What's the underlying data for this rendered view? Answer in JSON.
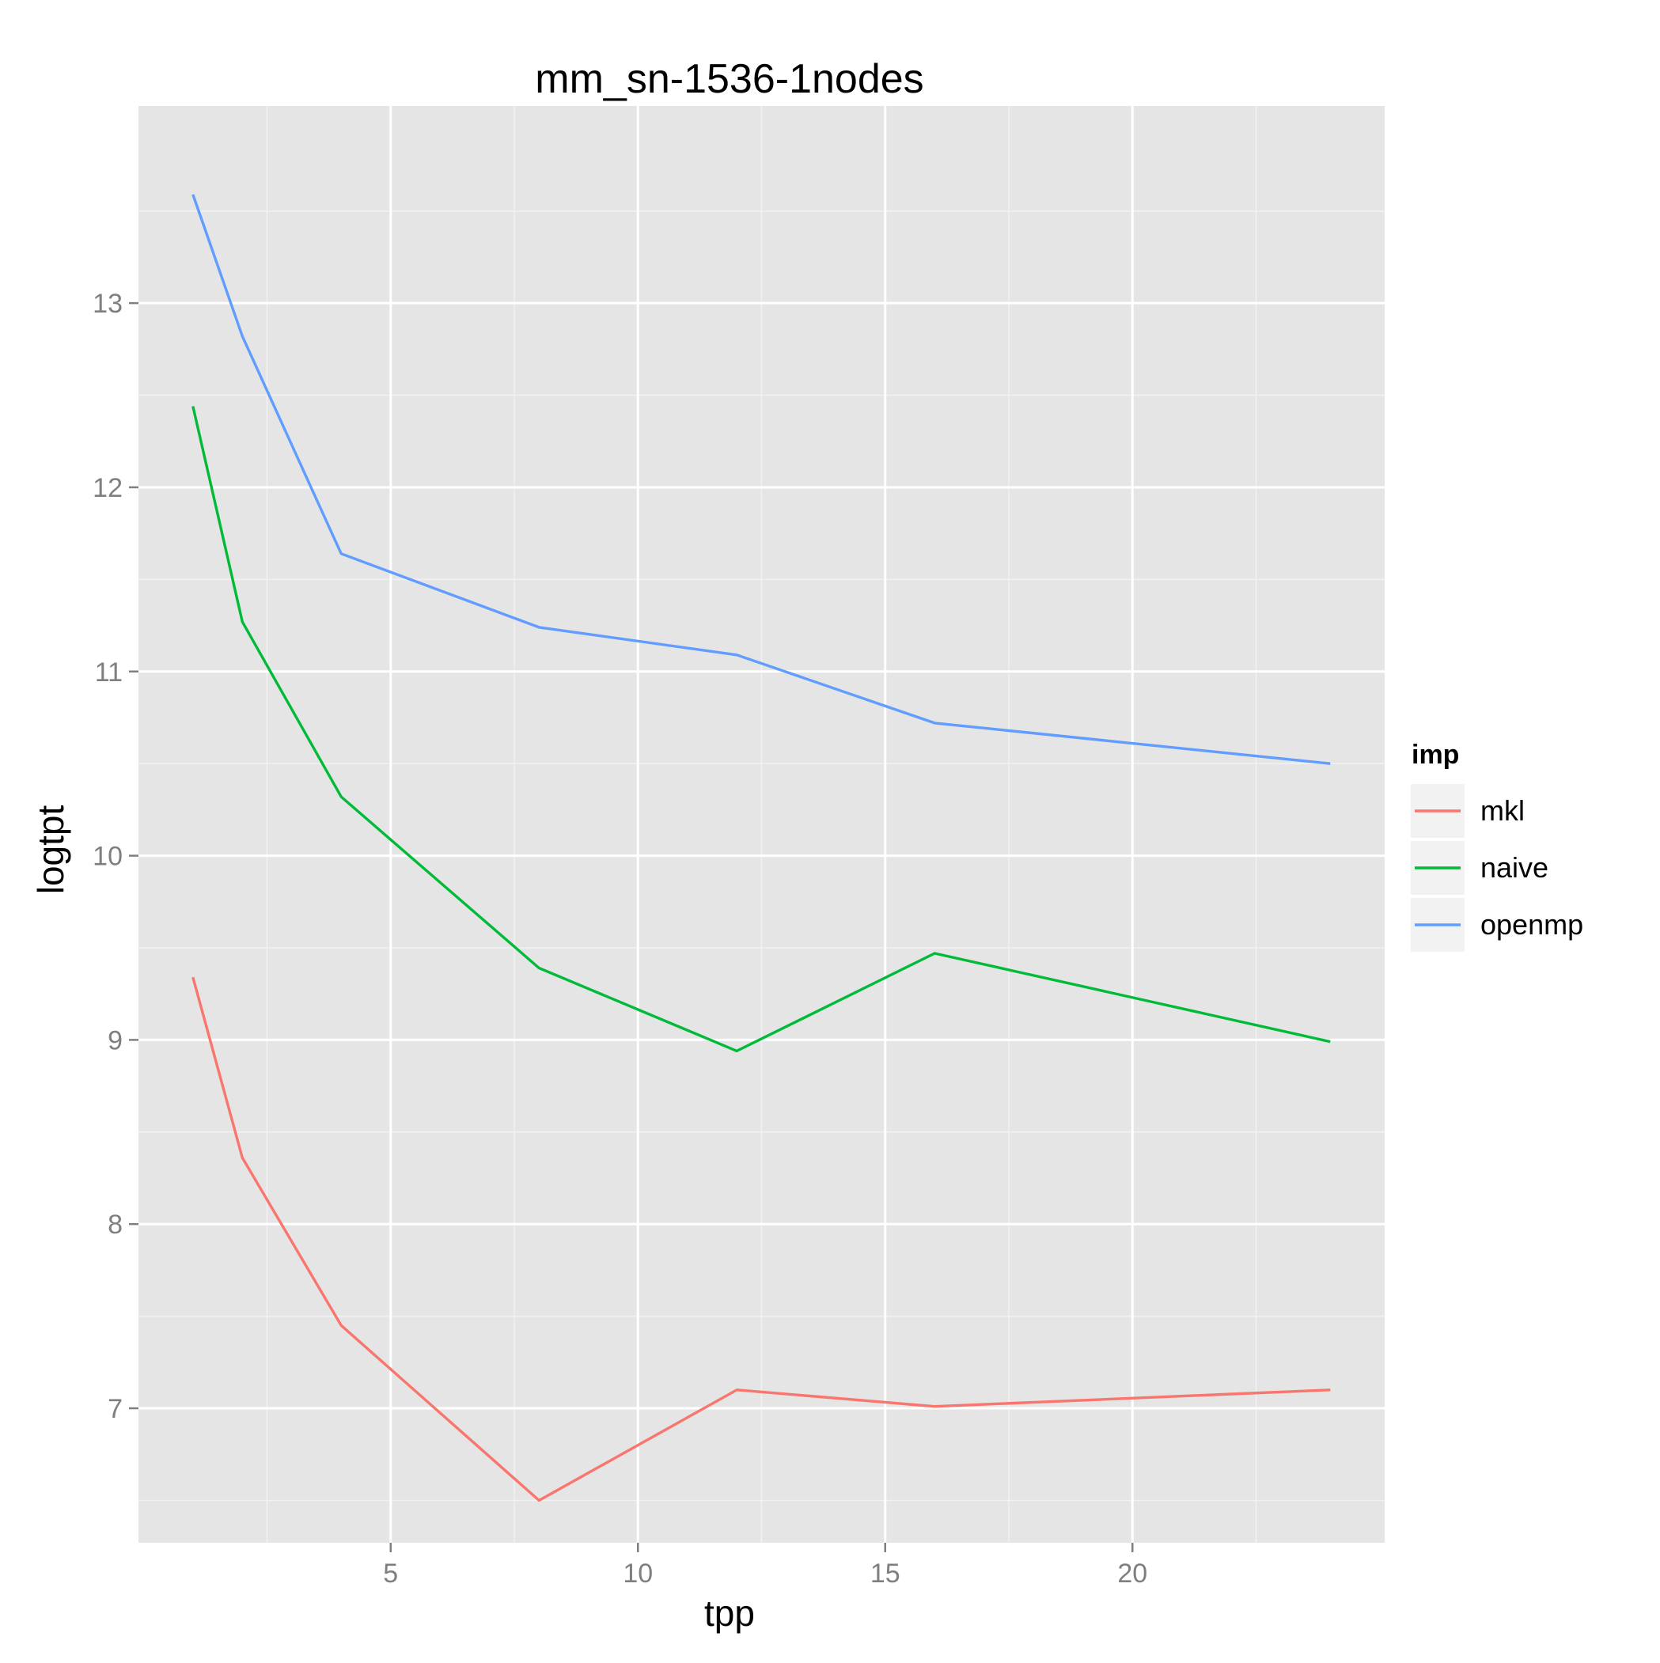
{
  "chart_data": {
    "type": "line",
    "title": "mm_sn-1536-1nodes",
    "xlabel": "tpp",
    "ylabel": "logtpt",
    "xlim": [
      -0.1,
      25.1
    ],
    "ylim": [
      6.27,
      14.07
    ],
    "x_ticks": [
      5,
      10,
      15,
      20
    ],
    "x_tick_labels": [
      "5",
      "10",
      "15",
      "20"
    ],
    "y_ticks": [
      7,
      8,
      9,
      10,
      11,
      12,
      13
    ],
    "y_tick_labels": [
      "7",
      "8",
      "9",
      "10",
      "11",
      "12",
      "13"
    ],
    "x_minor_ticks": [
      2.5,
      7.5,
      12.5,
      17.5,
      22.5
    ],
    "y_minor_ticks": [
      6.5,
      7.5,
      8.5,
      9.5,
      10.5,
      11.5,
      12.5,
      13.5
    ],
    "grid": true,
    "legend_position": "right",
    "legend_title": "imp",
    "x": [
      1,
      2,
      4,
      8,
      12,
      16,
      24
    ],
    "series": [
      {
        "name": "mkl",
        "color": "#F8766D",
        "values": [
          9.34,
          8.36,
          7.45,
          6.5,
          7.1,
          7.01,
          7.1
        ]
      },
      {
        "name": "naive",
        "color": "#00BA38",
        "values": [
          12.44,
          11.27,
          10.32,
          9.39,
          8.94,
          9.47,
          8.99
        ]
      },
      {
        "name": "openmp",
        "color": "#619CFF",
        "values": [
          13.59,
          12.82,
          11.64,
          11.24,
          11.09,
          10.72,
          10.5
        ]
      }
    ]
  },
  "colors": {
    "panel_background": "#E5E5E5",
    "major_grid": "#FFFFFF",
    "minor_grid": "#F2F2F2",
    "tick_text": "#7F7F7F",
    "legend_key_background": "#F2F2F2"
  }
}
